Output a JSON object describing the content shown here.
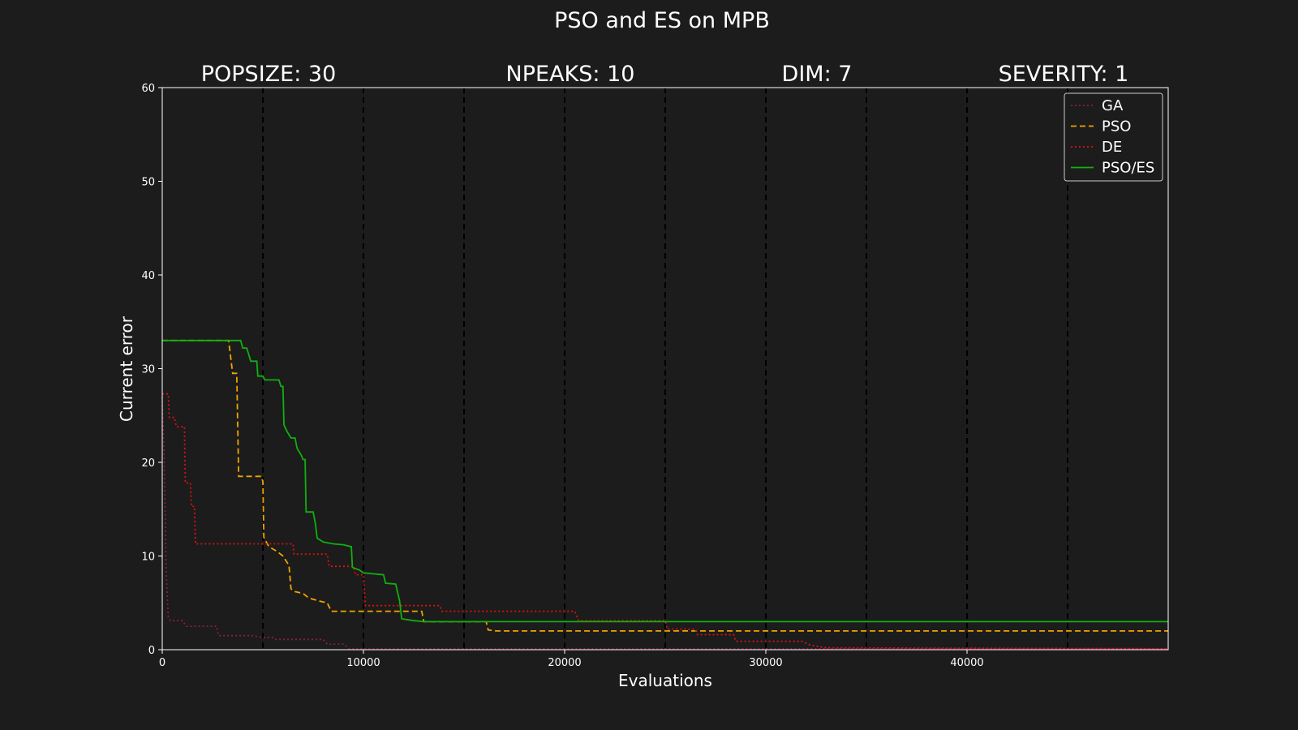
{
  "chart_data": {
    "type": "line",
    "title": "PSO and ES on MPB",
    "annotations": [
      "POPSIZE: 30",
      "NPEAKS: 10",
      "DIM: 7",
      "SEVERITY: 1"
    ],
    "xlabel": "Evaluations",
    "ylabel": "Current error",
    "xlim": [
      0,
      50000
    ],
    "ylim": [
      0,
      60
    ],
    "xticks": [
      0,
      10000,
      20000,
      30000,
      40000
    ],
    "yticks": [
      0,
      10,
      20,
      30,
      40,
      50,
      60
    ],
    "change_markers": [
      5000,
      10000,
      15000,
      20000,
      25000,
      30000,
      35000,
      40000,
      45000
    ],
    "legend_position": "top-right",
    "background": "#1c1c1c",
    "series": [
      {
        "name": "GA",
        "color": "#8b1a4a",
        "style": "dotted",
        "points": [
          [
            0,
            27
          ],
          [
            100,
            20
          ],
          [
            200,
            8
          ],
          [
            300,
            3.5
          ],
          [
            400,
            3.1
          ],
          [
            1000,
            3.1
          ],
          [
            1200,
            2.5
          ],
          [
            2700,
            2.5
          ],
          [
            2800,
            1.5
          ],
          [
            4500,
            1.5
          ],
          [
            5000,
            1.3
          ],
          [
            5500,
            1.3
          ],
          [
            5600,
            1.1
          ],
          [
            8000,
            1.1
          ],
          [
            8200,
            0.6
          ],
          [
            9000,
            0.6
          ],
          [
            9300,
            0.1
          ],
          [
            50000,
            0.1
          ]
        ]
      },
      {
        "name": "PSO",
        "color": "#f0a400",
        "style": "dashed",
        "points": [
          [
            0,
            33
          ],
          [
            3300,
            33
          ],
          [
            3500,
            29.5
          ],
          [
            3700,
            29.5
          ],
          [
            3750,
            24
          ],
          [
            3800,
            18.5
          ],
          [
            4900,
            18.5
          ],
          [
            5000,
            18
          ],
          [
            5050,
            12
          ],
          [
            5300,
            11
          ],
          [
            5700,
            10.5
          ],
          [
            6000,
            10
          ],
          [
            6300,
            9
          ],
          [
            6400,
            6.5
          ],
          [
            6600,
            6.2
          ],
          [
            7000,
            6
          ],
          [
            7300,
            5.5
          ],
          [
            7800,
            5.2
          ],
          [
            8200,
            5
          ],
          [
            8400,
            4.1
          ],
          [
            12900,
            4.1
          ],
          [
            13000,
            3
          ],
          [
            16100,
            3
          ],
          [
            16200,
            2.1
          ],
          [
            16600,
            2
          ],
          [
            50000,
            2
          ]
        ]
      },
      {
        "name": "DE",
        "color": "#e01010",
        "style": "dotted",
        "points": [
          [
            0,
            27.3
          ],
          [
            300,
            27.3
          ],
          [
            350,
            24.8
          ],
          [
            600,
            24.8
          ],
          [
            700,
            23.8
          ],
          [
            1100,
            23.8
          ],
          [
            1150,
            17.8
          ],
          [
            1400,
            17.8
          ],
          [
            1450,
            15.3
          ],
          [
            1600,
            15.3
          ],
          [
            1650,
            11.3
          ],
          [
            6500,
            11.3
          ],
          [
            6550,
            10.2
          ],
          [
            8200,
            10.2
          ],
          [
            8300,
            8.9
          ],
          [
            9500,
            8.9
          ],
          [
            9600,
            8
          ],
          [
            10000,
            8
          ],
          [
            10100,
            4.7
          ],
          [
            13800,
            4.7
          ],
          [
            13900,
            4.1
          ],
          [
            20500,
            4.1
          ],
          [
            20700,
            3.1
          ],
          [
            25000,
            3.1
          ],
          [
            25100,
            2.2
          ],
          [
            26500,
            2.2
          ],
          [
            26600,
            1.6
          ],
          [
            28400,
            1.6
          ],
          [
            28500,
            0.9
          ],
          [
            31800,
            0.9
          ],
          [
            32200,
            0.5
          ],
          [
            33000,
            0.2
          ],
          [
            50000,
            0.1
          ]
        ]
      },
      {
        "name": "PSO/ES",
        "color": "#10b010",
        "style": "solid",
        "points": [
          [
            0,
            33
          ],
          [
            3900,
            33
          ],
          [
            4000,
            32.2
          ],
          [
            4200,
            32.2
          ],
          [
            4400,
            30.8
          ],
          [
            4700,
            30.8
          ],
          [
            4750,
            29.2
          ],
          [
            5000,
            29.2
          ],
          [
            5100,
            28.8
          ],
          [
            5800,
            28.8
          ],
          [
            5900,
            28.1
          ],
          [
            6000,
            28.1
          ],
          [
            6050,
            24
          ],
          [
            6200,
            23.3
          ],
          [
            6400,
            22.6
          ],
          [
            6600,
            22.6
          ],
          [
            6700,
            21.5
          ],
          [
            6900,
            20.8
          ],
          [
            7000,
            20.3
          ],
          [
            7100,
            20.3
          ],
          [
            7150,
            14.7
          ],
          [
            7500,
            14.7
          ],
          [
            7600,
            13.6
          ],
          [
            7700,
            11.9
          ],
          [
            8000,
            11.5
          ],
          [
            8500,
            11.3
          ],
          [
            9000,
            11.2
          ],
          [
            9400,
            11
          ],
          [
            9450,
            8.8
          ],
          [
            9800,
            8.5
          ],
          [
            10000,
            8.2
          ],
          [
            11000,
            8
          ],
          [
            11100,
            7.1
          ],
          [
            11600,
            7
          ],
          [
            11800,
            5.2
          ],
          [
            11900,
            3.3
          ],
          [
            12500,
            3.1
          ],
          [
            13000,
            3
          ],
          [
            50000,
            3
          ]
        ]
      }
    ]
  }
}
